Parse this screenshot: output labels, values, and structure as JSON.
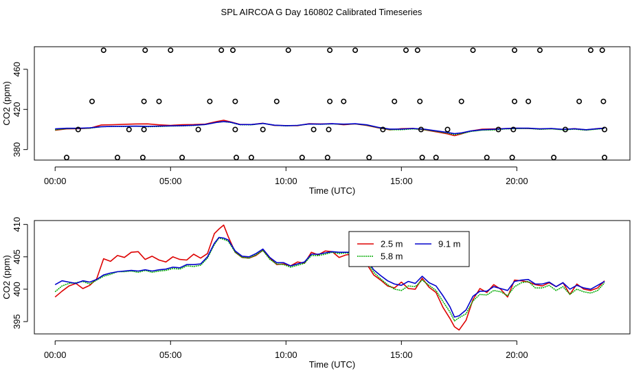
{
  "figure": {
    "title": "SPL AIRCOA G  Day 160802  Calibrated Timeseries"
  },
  "chart_data": [
    {
      "type": "line",
      "panel": "top",
      "xlabel": "Time (UTC)",
      "ylabel": "CO2 (ppm)",
      "xlim": [
        -0.9,
        24.9
      ],
      "ylim": [
        369.5,
        482.5
      ],
      "xticks": [
        0,
        5,
        10,
        15,
        20
      ],
      "xtick_labels": [
        "00:00",
        "05:00",
        "10:00",
        "15:00",
        "20:00"
      ],
      "yticks": [
        380,
        420,
        460
      ],
      "ytick_labels": [
        "380",
        "420",
        "460"
      ],
      "series": [
        {
          "name": "2.5 m",
          "color": "#dd0000",
          "x": [
            0,
            0.5,
            1,
            1.5,
            2,
            2.5,
            3,
            3.5,
            4,
            4.5,
            5,
            5.5,
            6,
            6.5,
            7,
            7.3,
            7.6,
            8,
            8.5,
            9,
            9.5,
            10,
            10.5,
            11,
            11.5,
            12,
            12.5,
            13,
            13.5,
            14,
            14.5,
            15,
            15.5,
            16,
            16.5,
            17,
            17.3,
            17.6,
            18,
            18.5,
            19,
            19.5,
            20,
            20.5,
            21,
            21.5,
            22,
            22.5,
            23,
            23.5,
            23.8
          ],
          "values": [
            399.2,
            400.6,
            400.8,
            401.3,
            404.5,
            404.8,
            405.2,
            405.5,
            405.6,
            404.6,
            404.1,
            404.8,
            404.9,
            405.3,
            407.9,
            409.2,
            407.6,
            405.1,
            404.9,
            406.2,
            404.0,
            403.9,
            403.8,
            405.8,
            405.5,
            405.8,
            404.7,
            405.6,
            404.0,
            401.6,
            399.6,
            400.8,
            401.1,
            399.6,
            397.7,
            395.6,
            393.8,
            395.6,
            398.5,
            400.3,
            400.5,
            400.9,
            401.2,
            401.1,
            400.5,
            400.9,
            400.0,
            400.8,
            399.6,
            400.9,
            401.3
          ]
        },
        {
          "name": "5.8 m",
          "color": "#00aa00",
          "x": [
            0,
            0.5,
            1,
            1.5,
            2,
            2.5,
            3,
            3.5,
            4,
            4.5,
            5,
            5.5,
            6,
            6.5,
            7,
            7.3,
            7.6,
            8,
            8.5,
            9,
            9.5,
            10,
            10.5,
            11,
            11.5,
            12,
            12.5,
            13,
            13.5,
            14,
            14.5,
            15,
            15.5,
            16,
            16.5,
            17,
            17.3,
            17.6,
            18,
            18.5,
            19,
            19.5,
            20,
            20.5,
            21,
            21.5,
            22,
            22.5,
            23,
            23.5,
            23.8
          ],
          "values": [
            399.6,
            400.8,
            401.0,
            401.3,
            402.7,
            403.1,
            403.0,
            403.2,
            402.8,
            403.0,
            403.4,
            403.6,
            404.0,
            404.9,
            407.1,
            407.8,
            407.0,
            404.8,
            404.6,
            406.0,
            404.2,
            403.6,
            404.0,
            405.4,
            405.2,
            405.5,
            405.1,
            405.6,
            404.3,
            401.8,
            399.8,
            399.8,
            400.6,
            399.8,
            398.2,
            396.4,
            395.0,
            395.9,
            398.0,
            399.3,
            399.5,
            400.5,
            400.9,
            401.0,
            400.2,
            400.6,
            399.6,
            400.3,
            399.3,
            400.4,
            401.1
          ]
        },
        {
          "name": "9.1 m",
          "color": "#0000cc",
          "x": [
            0,
            0.5,
            1,
            1.5,
            2,
            2.5,
            3,
            3.5,
            4,
            4.5,
            5,
            5.5,
            6,
            6.5,
            7,
            7.3,
            7.6,
            8,
            8.5,
            9,
            9.5,
            10,
            10.5,
            11,
            11.5,
            12,
            12.5,
            13,
            13.5,
            14,
            14.5,
            15,
            15.5,
            16,
            16.5,
            17,
            17.3,
            17.6,
            18,
            18.5,
            19,
            19.5,
            20,
            20.5,
            21,
            21.5,
            22,
            22.5,
            23,
            23.5,
            23.8
          ],
          "values": [
            400.6,
            401.2,
            401.2,
            401.6,
            402.8,
            403.1,
            403.2,
            403.3,
            403.1,
            403.3,
            403.6,
            403.8,
            404.2,
            405.0,
            407.1,
            407.9,
            407.3,
            404.9,
            404.9,
            406.1,
            404.3,
            403.8,
            404.1,
            405.5,
            405.3,
            405.7,
            405.3,
            405.7,
            404.6,
            402.1,
            400.4,
            400.4,
            401.0,
            400.3,
            398.7,
            397.0,
            395.8,
            396.6,
            398.5,
            399.8,
            400.2,
            400.9,
            401.3,
            401.3,
            400.6,
            401.0,
            400.1,
            400.7,
            399.8,
            400.8,
            401.3
          ]
        }
      ],
      "scatter_points": {
        "name": "calibration points",
        "symbol": "open circle",
        "x": [
          0.5,
          1.0,
          1.6,
          2.1,
          2.7,
          3.2,
          3.8,
          3.85,
          3.85,
          3.9,
          4.5,
          5.0,
          5.5,
          6.2,
          6.7,
          7.2,
          7.7,
          7.8,
          7.8,
          7.85,
          8.5,
          9.0,
          9.6,
          10.1,
          10.7,
          11.2,
          11.8,
          11.85,
          11.9,
          11.9,
          12.5,
          13.0,
          13.6,
          14.2,
          14.7,
          15.2,
          15.7,
          15.8,
          15.85,
          15.9,
          16.5,
          17.0,
          17.6,
          18.1,
          18.7,
          19.2,
          19.8,
          19.85,
          19.9,
          19.9,
          20.5,
          21.0,
          21.6,
          22.1,
          22.7,
          23.2,
          23.7,
          23.75,
          23.8,
          23.8
        ],
        "values": [
          372,
          400,
          428,
          479,
          372,
          400,
          372,
          400,
          428,
          479,
          428,
          479,
          372,
          400,
          428,
          479,
          479,
          428,
          400,
          372,
          372,
          400,
          428,
          479,
          372,
          400,
          372,
          400,
          428,
          479,
          428,
          479,
          372,
          400,
          428,
          479,
          479,
          428,
          400,
          372,
          372,
          400,
          428,
          479,
          372,
          400,
          372,
          400,
          428,
          479,
          428,
          479,
          372,
          400,
          428,
          479,
          479,
          428,
          400,
          372
        ]
      }
    },
    {
      "type": "line",
      "panel": "bottom",
      "xlabel": "Time (UTC)",
      "ylabel": "CO2 (ppm)",
      "xlim": [
        -0.9,
        24.9
      ],
      "ylim": [
        393.1,
        410.6
      ],
      "xticks": [
        0,
        5,
        10,
        15,
        20
      ],
      "xtick_labels": [
        "00:00",
        "05:00",
        "10:00",
        "15:00",
        "20:00"
      ],
      "yticks": [
        395,
        400,
        405,
        410
      ],
      "ytick_labels": [
        "395",
        "400",
        "405",
        "410"
      ],
      "legend": {
        "placement": "top-right of center",
        "entries": [
          "2.5 m",
          "9.1 m",
          "5.8 m"
        ]
      },
      "series": [
        {
          "name": "2.5 m",
          "color": "#dd0000",
          "x": [
            0,
            0.3,
            0.6,
            0.9,
            1.2,
            1.5,
            1.8,
            2.1,
            2.4,
            2.7,
            3.0,
            3.3,
            3.6,
            3.9,
            4.2,
            4.5,
            4.8,
            5.1,
            5.4,
            5.7,
            6.0,
            6.3,
            6.6,
            6.9,
            7.1,
            7.3,
            7.5,
            7.8,
            8.1,
            8.4,
            8.7,
            9.0,
            9.3,
            9.6,
            9.9,
            10.2,
            10.5,
            10.8,
            11.1,
            11.4,
            11.7,
            12.0,
            12.3,
            12.6,
            12.9,
            13.2,
            13.5,
            13.8,
            14.1,
            14.4,
            14.7,
            15.0,
            15.3,
            15.6,
            15.9,
            16.2,
            16.5,
            16.8,
            17.1,
            17.3,
            17.5,
            17.8,
            18.1,
            18.4,
            18.7,
            19.0,
            19.3,
            19.6,
            19.9,
            20.2,
            20.5,
            20.8,
            21.1,
            21.4,
            21.7,
            22.0,
            22.3,
            22.6,
            22.9,
            23.2,
            23.5,
            23.8
          ],
          "values": [
            398.8,
            399.7,
            400.5,
            400.9,
            400.1,
            400.6,
            401.6,
            404.7,
            404.3,
            405.2,
            404.9,
            405.7,
            405.8,
            404.6,
            405.1,
            404.5,
            404.2,
            405.0,
            404.6,
            404.5,
            405.4,
            404.8,
            405.5,
            408.6,
            409.3,
            409.9,
            408.1,
            405.7,
            404.9,
            404.8,
            405.2,
            406.0,
            404.8,
            403.8,
            403.9,
            403.6,
            404.2,
            404.0,
            405.7,
            405.3,
            405.9,
            405.8,
            404.9,
            405.3,
            405.4,
            404.4,
            403.9,
            402.2,
            401.4,
            400.5,
            400.2,
            401.1,
            400.1,
            400.0,
            401.7,
            400.3,
            399.5,
            397.2,
            395.5,
            394.2,
            393.7,
            395.2,
            398.4,
            400.1,
            399.5,
            400.7,
            400.0,
            398.8,
            401.4,
            401.3,
            401.1,
            400.7,
            400.5,
            401.0,
            400.4,
            401.0,
            399.2,
            400.8,
            400.0,
            399.8,
            400.2,
            401.3
          ]
        },
        {
          "name": "5.8 m",
          "color": "#00aa00",
          "x": [
            0,
            0.3,
            0.6,
            0.9,
            1.2,
            1.5,
            1.8,
            2.1,
            2.4,
            2.7,
            3.0,
            3.3,
            3.6,
            3.9,
            4.2,
            4.5,
            4.8,
            5.1,
            5.4,
            5.7,
            6.0,
            6.3,
            6.6,
            6.9,
            7.1,
            7.3,
            7.5,
            7.8,
            8.1,
            8.4,
            8.7,
            9.0,
            9.3,
            9.6,
            9.9,
            10.2,
            10.5,
            10.8,
            11.1,
            11.4,
            11.7,
            12.0,
            12.3,
            12.6,
            12.9,
            13.2,
            13.5,
            13.8,
            14.1,
            14.4,
            14.7,
            15.0,
            15.3,
            15.6,
            15.9,
            16.2,
            16.5,
            16.8,
            17.1,
            17.3,
            17.5,
            17.8,
            18.1,
            18.4,
            18.7,
            19.0,
            19.3,
            19.6,
            19.9,
            20.2,
            20.5,
            20.8,
            21.1,
            21.4,
            21.7,
            22.0,
            22.3,
            22.6,
            22.9,
            23.2,
            23.5,
            23.8
          ],
          "values": [
            399.6,
            400.5,
            400.9,
            401.0,
            401.2,
            400.8,
            401.4,
            402.0,
            402.3,
            402.7,
            402.7,
            402.8,
            402.6,
            402.9,
            402.6,
            402.8,
            402.9,
            403.2,
            403.1,
            403.6,
            403.5,
            403.7,
            404.8,
            406.9,
            407.9,
            407.7,
            407.4,
            405.7,
            404.9,
            404.8,
            405.3,
            406.0,
            404.6,
            403.9,
            403.8,
            403.4,
            403.7,
            404.0,
            405.2,
            405.2,
            405.4,
            405.7,
            405.5,
            405.6,
            405.5,
            404.9,
            404.3,
            402.6,
            401.6,
            400.7,
            400.0,
            399.8,
            400.5,
            400.4,
            401.4,
            400.6,
            399.8,
            398.1,
            396.5,
            395.1,
            395.6,
            396.2,
            398.2,
            399.2,
            399.1,
            399.8,
            399.6,
            399.0,
            400.4,
            401.0,
            401.2,
            400.2,
            400.2,
            400.6,
            399.8,
            400.4,
            399.2,
            400.0,
            399.6,
            399.4,
            399.8,
            401.0
          ]
        },
        {
          "name": "9.1 m",
          "color": "#0000cc",
          "x": [
            0,
            0.3,
            0.6,
            0.9,
            1.2,
            1.5,
            1.8,
            2.1,
            2.4,
            2.7,
            3.0,
            3.3,
            3.6,
            3.9,
            4.2,
            4.5,
            4.8,
            5.1,
            5.4,
            5.7,
            6.0,
            6.3,
            6.6,
            6.9,
            7.1,
            7.3,
            7.5,
            7.8,
            8.1,
            8.4,
            8.7,
            9.0,
            9.3,
            9.6,
            9.9,
            10.2,
            10.5,
            10.8,
            11.1,
            11.4,
            11.7,
            12.0,
            12.3,
            12.6,
            12.9,
            13.2,
            13.5,
            13.8,
            14.1,
            14.4,
            14.7,
            15.0,
            15.3,
            15.6,
            15.9,
            16.2,
            16.5,
            16.8,
            17.1,
            17.3,
            17.5,
            17.8,
            18.1,
            18.4,
            18.7,
            19.0,
            19.3,
            19.6,
            19.9,
            20.2,
            20.5,
            20.8,
            21.1,
            21.4,
            21.7,
            22.0,
            22.3,
            22.6,
            22.9,
            23.2,
            23.5,
            23.8
          ],
          "values": [
            400.7,
            401.3,
            401.1,
            400.9,
            401.3,
            401.1,
            401.5,
            402.2,
            402.5,
            402.7,
            402.8,
            402.9,
            402.8,
            403.0,
            402.8,
            403.0,
            403.1,
            403.4,
            403.3,
            403.8,
            403.8,
            403.9,
            405.0,
            407.1,
            408.0,
            407.9,
            407.6,
            405.9,
            405.1,
            405.0,
            405.5,
            406.2,
            404.9,
            404.1,
            404.1,
            403.6,
            403.9,
            404.2,
            405.4,
            405.4,
            405.6,
            405.8,
            405.7,
            405.7,
            405.7,
            405.1,
            404.5,
            403.0,
            402.1,
            401.3,
            400.8,
            400.6,
            401.2,
            400.9,
            402.0,
            401.0,
            400.5,
            399.0,
            397.3,
            395.7,
            395.9,
            396.8,
            398.9,
            399.7,
            399.7,
            400.4,
            400.1,
            399.8,
            401.2,
            401.4,
            401.5,
            400.8,
            400.8,
            401.1,
            400.4,
            401.0,
            400.0,
            400.6,
            400.2,
            400.0,
            400.6,
            401.2
          ]
        }
      ]
    }
  ]
}
